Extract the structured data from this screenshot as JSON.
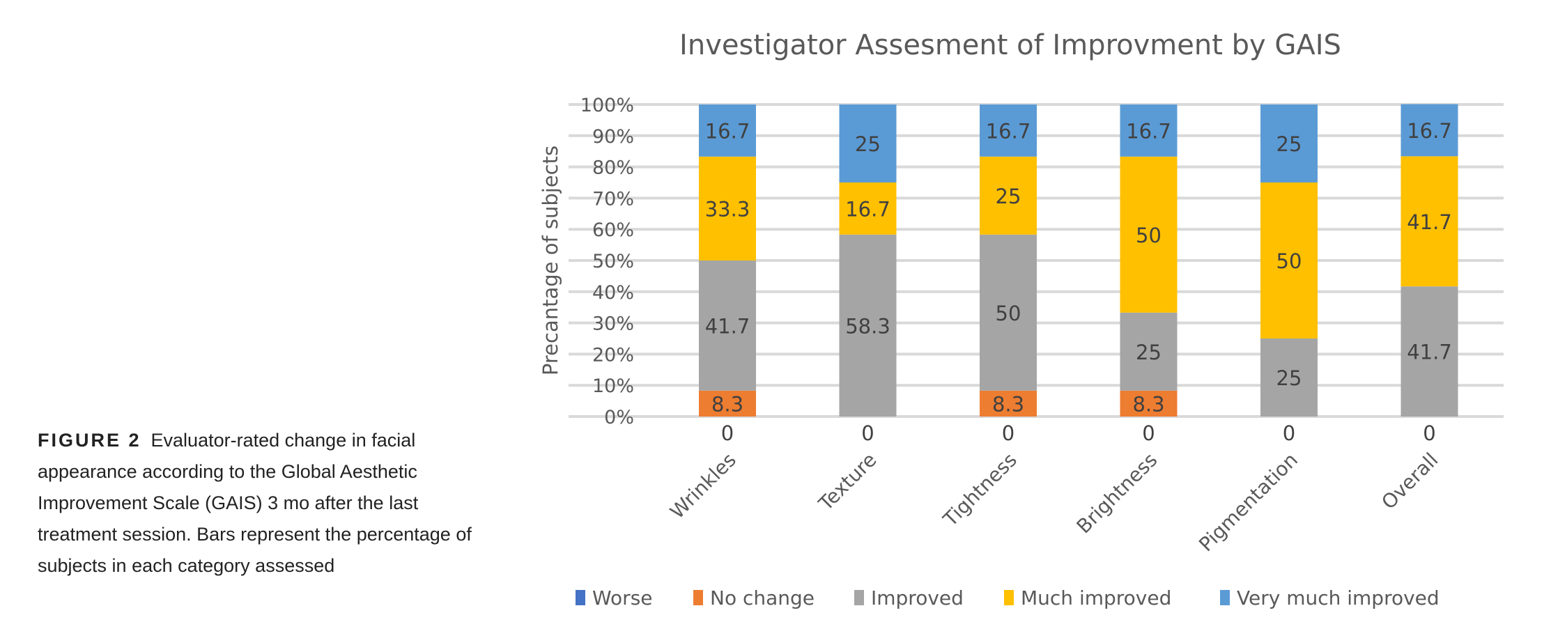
{
  "caption": {
    "label": "FIGURE 2",
    "text": "Evaluator-rated change in facial appearance according to the Global Aesthetic Improvement Scale (GAIS) 3 mo after the last treatment session. Bars represent the percentage of subjects in each category assessed"
  },
  "chart_data": {
    "type": "bar",
    "stacked": true,
    "title": "Investigator Assesment of Improvment by GAIS",
    "xlabel": "",
    "ylabel": "Precantage of subjects",
    "ylim": [
      0,
      100
    ],
    "yticks": [
      "0%",
      "10%",
      "20%",
      "30%",
      "40%",
      "50%",
      "60%",
      "70%",
      "80%",
      "90%",
      "100%"
    ],
    "grid": true,
    "legend_position": "bottom",
    "categories": [
      "Wrinkles",
      "Texture",
      "Tightness",
      "Brightness",
      "Pigmentation",
      "Overall"
    ],
    "series": [
      {
        "name": "Worse",
        "color": "#4472C4",
        "values": [
          0,
          0,
          0,
          0,
          0,
          0
        ]
      },
      {
        "name": "No change",
        "color": "#ED7D31",
        "values": [
          8.3,
          0,
          8.3,
          8.3,
          0,
          0
        ]
      },
      {
        "name": "Improved",
        "color": "#A5A5A5",
        "values": [
          41.7,
          58.3,
          50,
          25,
          25,
          41.7
        ]
      },
      {
        "name": "Much improved",
        "color": "#FFC000",
        "values": [
          33.3,
          16.7,
          25,
          50,
          50,
          41.7
        ]
      },
      {
        "name": "Very much improved",
        "color": "#5B9BD5",
        "values": [
          16.7,
          25,
          16.7,
          16.7,
          25,
          16.7
        ]
      }
    ]
  }
}
